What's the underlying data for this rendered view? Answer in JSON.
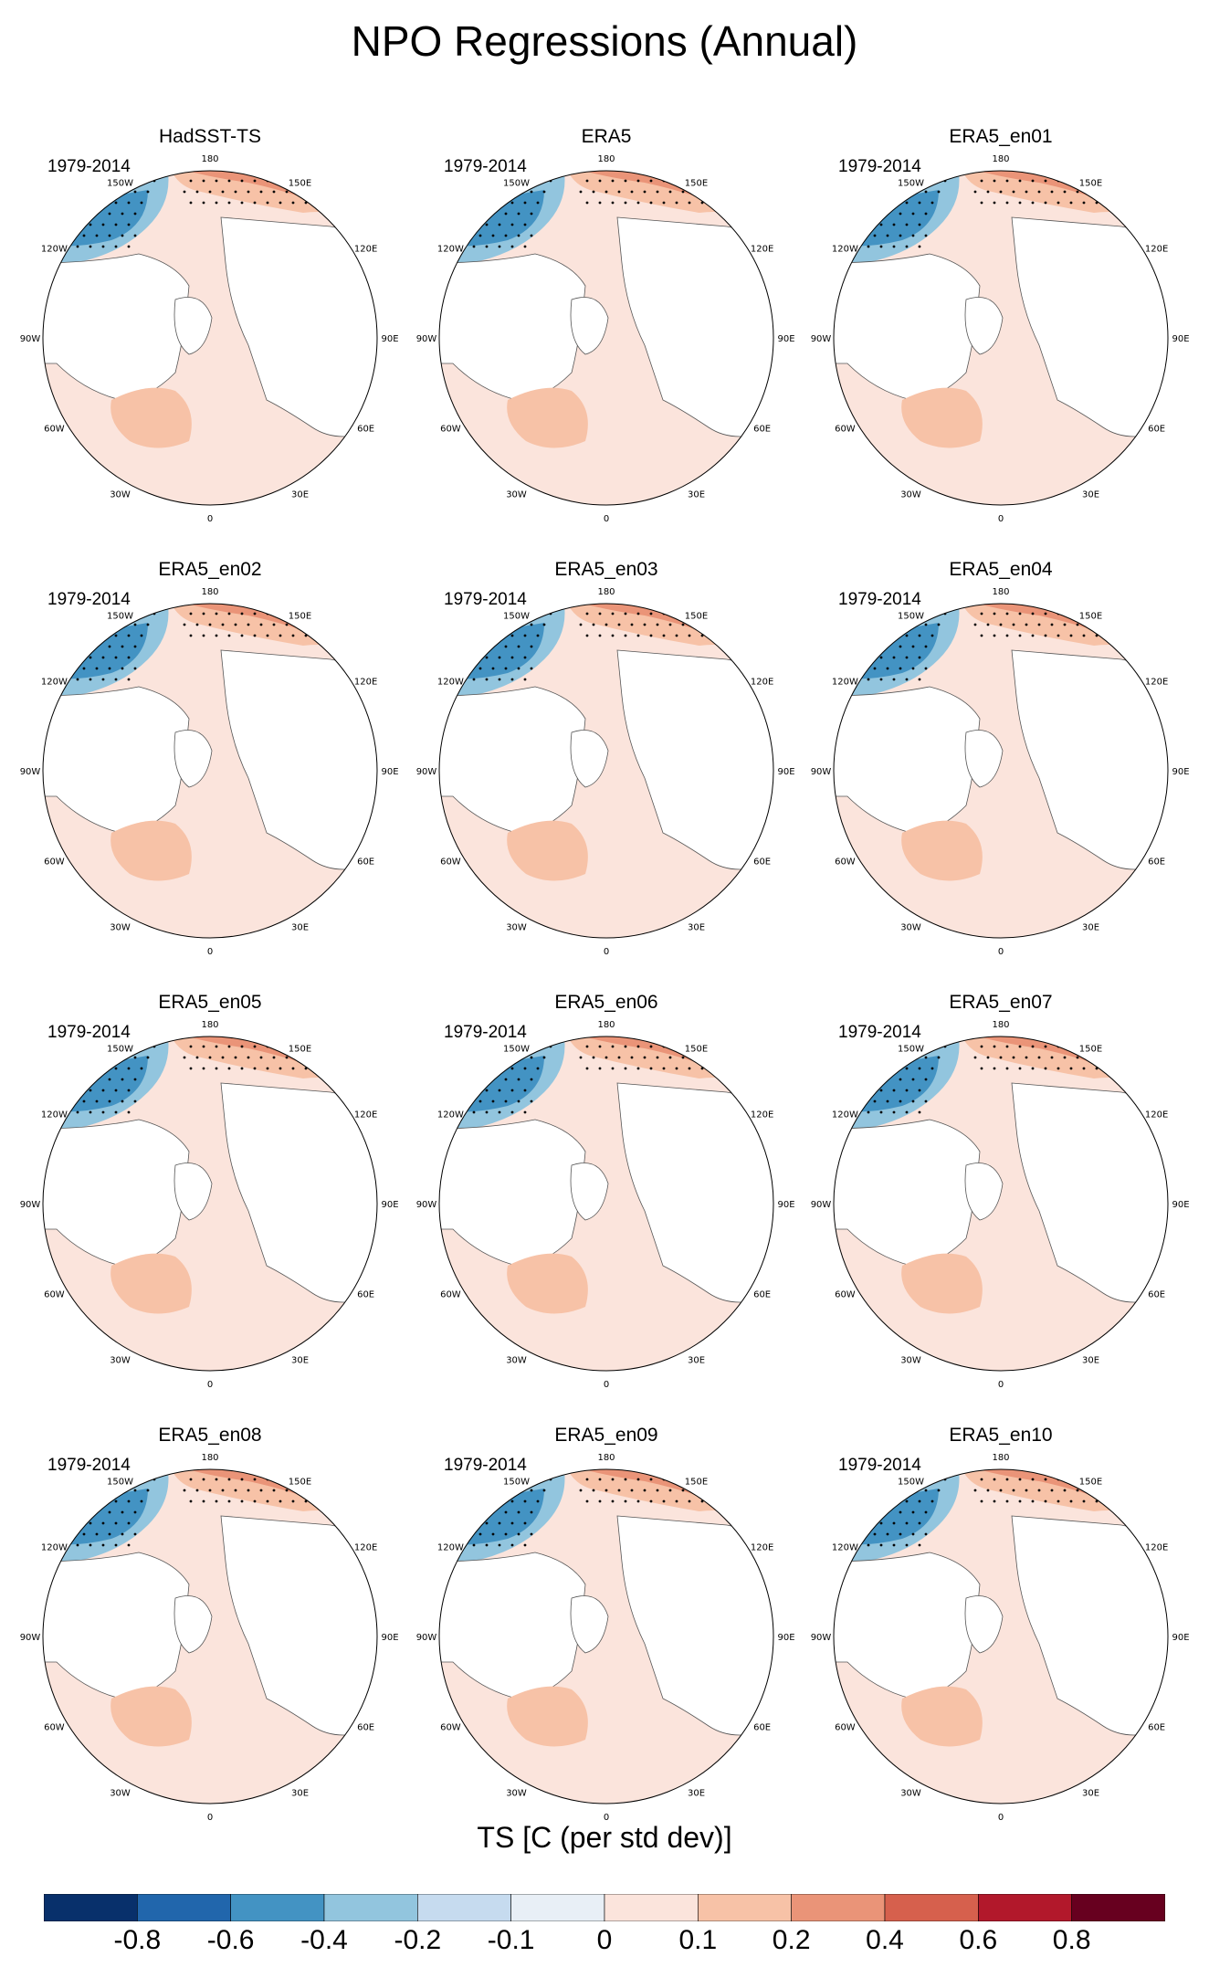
{
  "title": "NPO Regressions (Annual)",
  "chart_data": {
    "type": "heatmap",
    "projection": "polar-stereographic-north",
    "period": "1979-2014",
    "panels": [
      {
        "title": "HadSST-TS"
      },
      {
        "title": "ERA5"
      },
      {
        "title": "ERA5_en01"
      },
      {
        "title": "ERA5_en02"
      },
      {
        "title": "ERA5_en03"
      },
      {
        "title": "ERA5_en04"
      },
      {
        "title": "ERA5_en05"
      },
      {
        "title": "ERA5_en06"
      },
      {
        "title": "ERA5_en07"
      },
      {
        "title": "ERA5_en08"
      },
      {
        "title": "ERA5_en09"
      },
      {
        "title": "ERA5_en10"
      }
    ],
    "longitude_labels": [
      "180",
      "150E",
      "120E",
      "90E",
      "60E",
      "30E",
      "0",
      "30W",
      "60W",
      "90W",
      "120W",
      "150W"
    ],
    "colorbar": {
      "title": "TS [C (per std dev)]",
      "ticks": [
        "-0.8",
        "-0.6",
        "-0.4",
        "-0.2",
        "-0.1",
        "0",
        "0.1",
        "0.2",
        "0.4",
        "0.6",
        "0.8"
      ],
      "levels": [
        -0.8,
        -0.6,
        -0.4,
        -0.2,
        -0.1,
        0,
        0.1,
        0.2,
        0.4,
        0.6,
        0.8
      ],
      "colors": [
        "#08306b",
        "#2166ac",
        "#4393c3",
        "#92c5de",
        "#c6dbef",
        "#e8eff6",
        "#fbe4dc",
        "#f7c2a7",
        "#ea9478",
        "#d6604d",
        "#b2182b",
        "#67001f"
      ]
    }
  }
}
